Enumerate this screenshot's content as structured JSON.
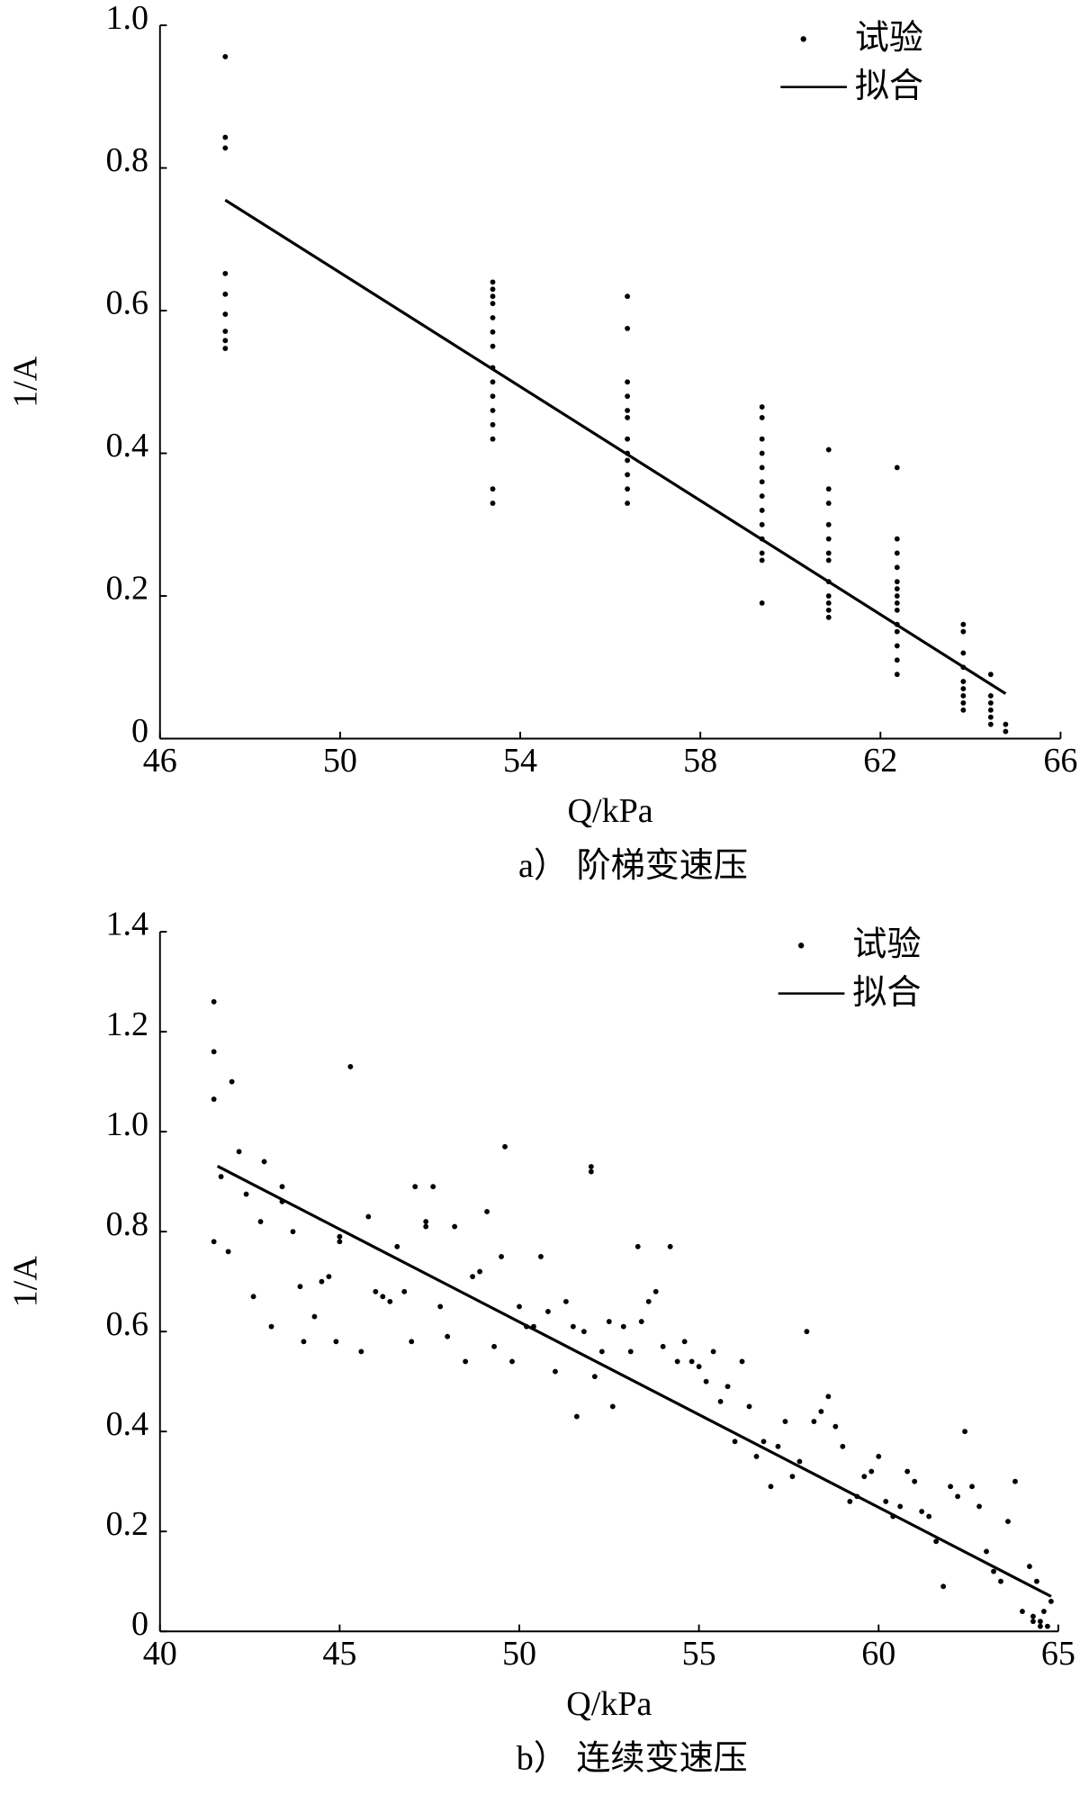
{
  "chart_data": [
    {
      "type": "scatter",
      "caption": "a） 阶梯变速压",
      "xlabel": "Q/kPa",
      "ylabel": "1/A",
      "xlim": [
        46,
        66
      ],
      "xticks": [
        46,
        50,
        54,
        58,
        62,
        66
      ],
      "ylim": [
        0,
        1
      ],
      "yticks": [
        0,
        0.2,
        0.4,
        0.6,
        0.8,
        {
          "value": 1,
          "label": "1.0"
        }
      ],
      "grid": false,
      "legend": "upper right",
      "series": [
        {
          "name": "试验",
          "mode": "markers",
          "color": "#000000",
          "x": [
            47.45,
            47.45,
            47.45,
            47.45,
            47.45,
            47.45,
            47.45,
            47.45,
            47.45,
            53.39,
            53.39,
            53.39,
            53.39,
            53.39,
            53.39,
            53.39,
            53.39,
            53.39,
            53.39,
            53.39,
            53.39,
            53.39,
            53.39,
            53.39,
            56.38,
            56.38,
            56.38,
            56.38,
            56.38,
            56.38,
            56.38,
            56.38,
            56.38,
            56.38,
            56.38,
            56.38,
            59.37,
            59.37,
            59.37,
            59.37,
            59.37,
            59.37,
            59.37,
            59.37,
            59.37,
            59.37,
            59.37,
            59.37,
            59.37,
            60.85,
            60.85,
            60.85,
            60.85,
            60.85,
            60.85,
            60.85,
            60.85,
            60.85,
            60.85,
            60.85,
            60.85,
            62.37,
            62.37,
            62.37,
            62.37,
            62.37,
            62.37,
            62.37,
            62.37,
            62.37,
            62.37,
            62.37,
            62.37,
            62.37,
            62.37,
            63.84,
            63.84,
            63.84,
            63.84,
            63.84,
            63.84,
            63.84,
            63.84,
            63.84,
            64.45,
            64.45,
            64.45,
            64.45,
            64.45,
            64.45,
            64.78,
            64.78
          ],
          "values": [
            0.956,
            0.843,
            0.828,
            0.652,
            0.623,
            0.595,
            0.571,
            0.558,
            0.547,
            0.64,
            0.63,
            0.62,
            0.61,
            0.59,
            0.57,
            0.55,
            0.52,
            0.5,
            0.48,
            0.46,
            0.44,
            0.42,
            0.35,
            0.33,
            0.62,
            0.575,
            0.5,
            0.48,
            0.46,
            0.45,
            0.42,
            0.4,
            0.39,
            0.37,
            0.35,
            0.33,
            0.465,
            0.45,
            0.42,
            0.4,
            0.38,
            0.36,
            0.34,
            0.32,
            0.3,
            0.28,
            0.26,
            0.25,
            0.19,
            0.405,
            0.35,
            0.33,
            0.3,
            0.28,
            0.26,
            0.25,
            0.22,
            0.2,
            0.19,
            0.18,
            0.17,
            0.38,
            0.28,
            0.26,
            0.24,
            0.22,
            0.21,
            0.2,
            0.19,
            0.18,
            0.16,
            0.15,
            0.13,
            0.11,
            0.09,
            0.16,
            0.15,
            0.12,
            0.1,
            0.08,
            0.07,
            0.06,
            0.05,
            0.04,
            0.09,
            0.06,
            0.05,
            0.04,
            0.03,
            0.02,
            0.02,
            0.01
          ]
        },
        {
          "name": "拟合",
          "mode": "line",
          "color": "#000000",
          "x": [
            47.45,
            64.78
          ],
          "values": [
            0.755,
            0.063
          ]
        }
      ]
    },
    {
      "type": "scatter",
      "caption": "b） 连续变速压",
      "xlabel": "Q/kPa",
      "ylabel": "1/A",
      "xlim": [
        40,
        65
      ],
      "xticks": [
        40,
        45,
        50,
        55,
        60,
        65
      ],
      "ylim": [
        0,
        1.4
      ],
      "yticks": [
        0,
        0.2,
        0.4,
        0.6,
        0.8,
        {
          "value": 1,
          "label": "1.0"
        },
        1.2,
        1.4
      ],
      "grid": false,
      "legend": "upper right",
      "series": [
        {
          "name": "试验",
          "mode": "markers",
          "color": "#000000",
          "x": [
            41.5,
            41.5,
            41.5,
            41.5,
            41.7,
            41.9,
            42.0,
            42.2,
            42.4,
            42.6,
            42.9,
            42.8,
            43.1,
            43.4,
            43.4,
            43.7,
            43.9,
            44.0,
            44.3,
            44.5,
            44.7,
            44.9,
            45.0,
            45.0,
            45.3,
            45.6,
            45.8,
            46.0,
            46.2,
            46.4,
            46.6,
            46.8,
            47.0,
            47.1,
            47.4,
            47.4,
            47.6,
            47.8,
            48.0,
            48.2,
            48.5,
            48.7,
            48.9,
            49.1,
            49.3,
            49.5,
            49.6,
            49.8,
            50.0,
            50.2,
            50.4,
            50.6,
            50.8,
            51.0,
            51.3,
            51.5,
            51.6,
            51.8,
            52.0,
            52.0,
            52.1,
            52.3,
            52.5,
            52.6,
            52.9,
            53.1,
            53.3,
            53.4,
            53.6,
            53.8,
            54.0,
            54.2,
            54.4,
            54.6,
            54.8,
            55.0,
            55.2,
            55.4,
            55.6,
            55.8,
            56.0,
            56.2,
            56.4,
            56.6,
            56.8,
            57.0,
            57.2,
            57.4,
            57.6,
            57.8,
            58.0,
            58.2,
            58.4,
            58.6,
            58.8,
            59.0,
            59.2,
            59.4,
            59.6,
            59.8,
            60.0,
            60.2,
            60.4,
            60.6,
            60.8,
            61.0,
            61.2,
            61.4,
            61.6,
            61.8,
            62.0,
            62.2,
            62.4,
            62.6,
            62.8,
            63.0,
            63.2,
            63.4,
            63.6,
            63.8,
            64.0,
            64.2,
            64.4,
            64.6,
            64.8,
            64.3,
            64.3,
            64.5,
            64.5,
            64.7
          ],
          "values": [
            1.26,
            1.16,
            1.065,
            0.78,
            0.91,
            0.76,
            1.1,
            0.96,
            0.875,
            0.67,
            0.94,
            0.82,
            0.61,
            0.86,
            0.89,
            0.8,
            0.69,
            0.58,
            0.63,
            0.7,
            0.71,
            0.58,
            0.78,
            0.79,
            1.13,
            0.56,
            0.83,
            0.68,
            0.67,
            0.66,
            0.77,
            0.68,
            0.58,
            0.89,
            0.81,
            0.82,
            0.89,
            0.65,
            0.59,
            0.81,
            0.54,
            0.71,
            0.72,
            0.84,
            0.57,
            0.75,
            0.97,
            0.54,
            0.65,
            0.61,
            0.61,
            0.75,
            0.64,
            0.52,
            0.66,
            0.61,
            0.43,
            0.6,
            0.93,
            0.92,
            0.51,
            0.56,
            0.62,
            0.45,
            0.61,
            0.56,
            0.77,
            0.62,
            0.66,
            0.68,
            0.57,
            0.77,
            0.54,
            0.58,
            0.54,
            0.53,
            0.5,
            0.56,
            0.46,
            0.49,
            0.38,
            0.54,
            0.45,
            0.35,
            0.38,
            0.29,
            0.37,
            0.42,
            0.31,
            0.34,
            0.6,
            0.42,
            0.44,
            0.47,
            0.41,
            0.37,
            0.26,
            0.27,
            0.31,
            0.32,
            0.35,
            0.26,
            0.23,
            0.25,
            0.32,
            0.3,
            0.24,
            0.23,
            0.18,
            0.09,
            0.29,
            0.27,
            0.4,
            0.29,
            0.25,
            0.16,
            0.12,
            0.1,
            0.22,
            0.3,
            0.04,
            0.13,
            0.1,
            0.04,
            0.06,
            0.03,
            0.02,
            0.02,
            0.01,
            0.01
          ]
        },
        {
          "name": "拟合",
          "mode": "line",
          "color": "#000000",
          "x": [
            41.6,
            64.8
          ],
          "values": [
            0.931,
            0.07
          ]
        }
      ]
    }
  ]
}
